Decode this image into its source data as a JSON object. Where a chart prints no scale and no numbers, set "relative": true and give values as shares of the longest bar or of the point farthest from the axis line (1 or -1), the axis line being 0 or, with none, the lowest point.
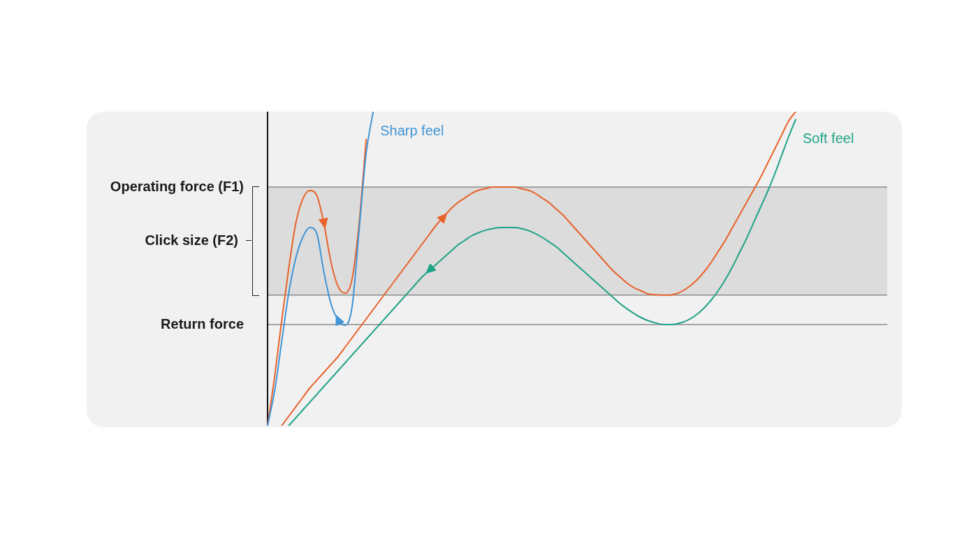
{
  "chart_data": {
    "type": "line",
    "relative": true,
    "legend": false,
    "marker": "none",
    "line_style": "solid",
    "categories": [
      null,
      null,
      null,
      null,
      null,
      null,
      null,
      null,
      null,
      null,
      null,
      null,
      null,
      null,
      null,
      null,
      null,
      null,
      null,
      null,
      null,
      null,
      null,
      null,
      null,
      null,
      null,
      null,
      null,
      null,
      null,
      null,
      null,
      null,
      null,
      null,
      null,
      null,
      null,
      null,
      null,
      null,
      null,
      null,
      null,
      null,
      null,
      null,
      null,
      null,
      null,
      null,
      null,
      null,
      null,
      null,
      null,
      null,
      null,
      null,
      null,
      null,
      null,
      null,
      null,
      null,
      null,
      null,
      null,
      null,
      null,
      null,
      null,
      null,
      null,
      null,
      null,
      null,
      null,
      null,
      null,
      null,
      null,
      null,
      null,
      null,
      null,
      null,
      null
    ],
    "series": [
      {
        "color": "#3f95d6",
        "name": "Sharp feel",
        "values": [
          0,
          0.111,
          0.267,
          0.422,
          0.533,
          0.6,
          0.631,
          0.611,
          0.489,
          0.389,
          0.338,
          0.32,
          0.378,
          0.622,
          0.867,
          1,
          null,
          null,
          null,
          null,
          null,
          null,
          null,
          null,
          null,
          null,
          null,
          null,
          null,
          null,
          null,
          null,
          null,
          null,
          null,
          null,
          null,
          null,
          null,
          null,
          null,
          null,
          null,
          null,
          null,
          null,
          null,
          null,
          null,
          null,
          null,
          null,
          null,
          null,
          null,
          null,
          null,
          null,
          null,
          null,
          null,
          null,
          null,
          null,
          null,
          null,
          null,
          null,
          null,
          null,
          null,
          null,
          null,
          null,
          null,
          null,
          null,
          null,
          null,
          null,
          null,
          null,
          null,
          null,
          null,
          null,
          null,
          null,
          null
        ]
      },
      {
        "color": "#e8622a",
        "values": [
          0,
          0.156,
          0.333,
          0.5,
          0.644,
          0.722,
          0.749,
          0.733,
          0.644,
          0.522,
          0.444,
          0.422,
          0.467,
          0.644,
          0.911,
          null,
          null,
          null,
          null,
          null,
          null,
          null,
          null,
          null,
          null,
          null,
          null,
          null,
          null,
          null,
          null,
          null,
          null,
          null,
          null,
          null,
          null,
          null,
          null,
          null,
          null,
          null,
          null,
          null,
          null,
          null,
          null,
          null,
          null,
          null,
          null,
          null,
          null,
          null,
          null,
          null,
          null,
          null,
          null,
          null,
          null,
          null,
          null,
          null,
          null,
          null,
          null,
          null,
          null,
          null,
          null,
          null,
          null,
          null,
          null,
          null,
          null,
          null,
          null,
          null,
          null,
          null,
          null,
          null,
          null,
          null,
          null,
          null,
          null
        ]
      },
      {
        "color": "#1fa387",
        "name": "Soft feel",
        "values": [
          null,
          null,
          null,
          0,
          0.025,
          0.05,
          0.075,
          0.1,
          0.125,
          0.15,
          0.175,
          0.2,
          0.225,
          0.25,
          0.275,
          0.3,
          0.325,
          0.35,
          0.375,
          0.4,
          0.425,
          0.45,
          0.475,
          0.495,
          0.515,
          0.535,
          0.555,
          0.575,
          0.59,
          0.605,
          0.615,
          0.623,
          0.628,
          0.631,
          0.631,
          0.631,
          0.628,
          0.622,
          0.612,
          0.6,
          0.585,
          0.57,
          0.55,
          0.53,
          0.51,
          0.49,
          0.47,
          0.45,
          0.43,
          0.41,
          0.39,
          0.373,
          0.358,
          0.345,
          0.335,
          0.328,
          0.323,
          0.322,
          0.324,
          0.33,
          0.34,
          0.355,
          0.375,
          0.4,
          0.43,
          0.465,
          0.505,
          0.55,
          0.595,
          0.645,
          0.695,
          0.745,
          0.8,
          0.86,
          0.92,
          0.975,
          null,
          null,
          null,
          null,
          null,
          null,
          null,
          null,
          null,
          null,
          null,
          null,
          null
        ]
      },
      {
        "color": "#e8622a",
        "values": [
          null,
          null,
          0,
          0.03,
          0.06,
          0.09,
          0.12,
          0.145,
          0.17,
          0.195,
          0.22,
          0.25,
          0.28,
          0.31,
          0.34,
          0.37,
          0.4,
          0.43,
          0.46,
          0.49,
          0.52,
          0.55,
          0.58,
          0.61,
          0.64,
          0.665,
          0.69,
          0.71,
          0.725,
          0.74,
          0.75,
          0.755,
          0.76,
          0.76,
          0.76,
          0.76,
          0.755,
          0.75,
          0.74,
          0.725,
          0.71,
          0.69,
          0.67,
          0.645,
          0.62,
          0.595,
          0.57,
          0.545,
          0.52,
          0.495,
          0.475,
          0.455,
          0.44,
          0.43,
          0.42,
          0.417,
          0.416,
          0.416,
          0.42,
          0.43,
          0.445,
          0.465,
          0.49,
          0.52,
          0.555,
          0.59,
          0.63,
          0.67,
          0.71,
          0.75,
          0.79,
          0.835,
          0.88,
          0.925,
          0.97,
          1,
          null,
          null,
          null,
          null,
          null,
          null,
          null,
          null,
          null,
          null,
          null,
          null,
          null
        ]
      }
    ],
    "ref_lines": [
      {
        "axis": "y",
        "value": 0.76,
        "label": "Operating force (F1)",
        "color": "#8a8a8a"
      },
      {
        "axis": "y",
        "value": 0.322,
        "label": "Return force",
        "color": "#8a8a8a"
      },
      {
        "axis": "y",
        "value": 0.416,
        "color": "#8a8a8a"
      }
    ],
    "bands": [
      {
        "axis": "y",
        "from": 0.416,
        "to": 0.76,
        "label": "Click size (F2)",
        "color": "#dcdcdc"
      }
    ]
  }
}
